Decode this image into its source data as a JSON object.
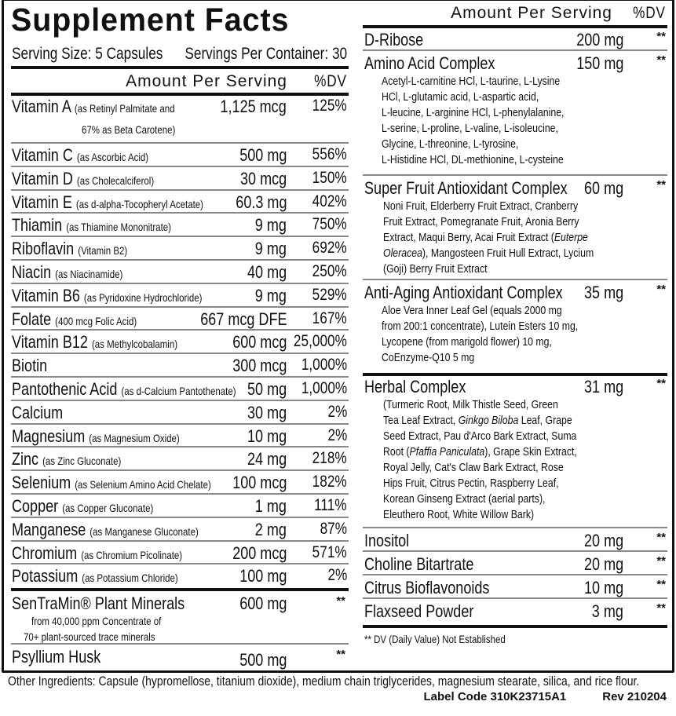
{
  "title": "Supplement Facts",
  "serving_size": "Serving Size: 5 Capsules",
  "servings_per_container": "Servings Per Container: 30",
  "header": {
    "amount": "Amount Per Serving",
    "dv": "%DV"
  },
  "left_rows": [
    {
      "name": "Vitamin A",
      "note": "(as Retinyl Palmitate and",
      "note2": "67% as Beta Carotene)",
      "amount": "1,125 mcg",
      "dv": "125%"
    },
    {
      "name": "Vitamin C",
      "note": "(as Ascorbic Acid)",
      "amount": "500 mg",
      "dv": "556%"
    },
    {
      "name": "Vitamin D",
      "note": "(as Cholecalciferol)",
      "amount": "30 mcg",
      "dv": "150%"
    },
    {
      "name": "Vitamin E",
      "note": "(as d-alpha-Tocopheryl Acetate)",
      "amount": "60.3 mg",
      "dv": "402%"
    },
    {
      "name": "Thiamin",
      "note": "(as Thiamine Mononitrate)",
      "amount": "9 mg",
      "dv": "750%"
    },
    {
      "name": "Riboflavin",
      "note": "(Vitamin B2)",
      "amount": "9 mg",
      "dv": "692%"
    },
    {
      "name": "Niacin",
      "note": "(as Niacinamide)",
      "amount": "40 mg",
      "dv": "250%"
    },
    {
      "name": "Vitamin B6",
      "note": "(as Pyridoxine Hydrochloride)",
      "amount": "9 mg",
      "dv": "529%"
    },
    {
      "name": "Folate",
      "note": "(400 mcg Folic Acid)",
      "amount": "667 mcg DFE",
      "dv": "167%"
    },
    {
      "name": "Vitamin B12",
      "note": "(as Methylcobalamin)",
      "amount": "600 mcg",
      "dv": "25,000%"
    },
    {
      "name": "Biotin",
      "note": "",
      "amount": "300 mcg",
      "dv": "1,000%"
    },
    {
      "name": "Pantothenic Acid",
      "note": "(as d-Calcium Pantothenate)",
      "amount": "50 mg",
      "dv": "1,000%"
    },
    {
      "name": "Calcium",
      "note": "",
      "amount": "30 mg",
      "dv": "2%"
    },
    {
      "name": "Magnesium",
      "note": "(as Magnesium Oxide)",
      "amount": "10 mg",
      "dv": "2%"
    },
    {
      "name": "Zinc",
      "note": "(as Zinc Gluconate)",
      "amount": "24 mg",
      "dv": "218%"
    },
    {
      "name": "Selenium",
      "note": "(as Selenium Amino Acid Chelate)",
      "amount": "100 mcg",
      "dv": "182%"
    },
    {
      "name": "Copper",
      "note": "(as Copper Gluconate)",
      "amount": "1 mg",
      "dv": "111%"
    },
    {
      "name": "Manganese",
      "note": "(as Manganese Gluconate)",
      "amount": "2 mg",
      "dv": "87%"
    },
    {
      "name": "Chromium",
      "note": "(as Chromium Picolinate)",
      "amount": "200 mcg",
      "dv": "571%"
    },
    {
      "name": "Potassium",
      "note": "(as Potassium Chloride)",
      "amount": "100 mg",
      "dv": "2%"
    }
  ],
  "sentramin": {
    "name": "SenTraMin® Plant Minerals",
    "amount": "600 mg",
    "dv": "**",
    "details": [
      "from 40,000 ppm Concentrate of",
      "70+ plant-sourced trace minerals"
    ]
  },
  "psyllium": {
    "name": "Psyllium Husk",
    "amount": "500 mg",
    "dv": "**"
  },
  "right_rows": [
    {
      "name": "D-Ribose",
      "amount": "200 mg",
      "dv": "**",
      "details": []
    },
    {
      "name": "Amino Acid Complex",
      "amount": "150 mg",
      "dv": "**",
      "details": [
        "Acetyl-L-carnitine HCl, L-taurine, L-Lysine",
        "HCl, L-glutamic acid, L-aspartic acid,",
        "L-leucine, L-arginine HCl, L-phenylalanine,",
        "L-serine, L-proline, L-valine, L-isoleucine,",
        "Glycine, L-threonine, L-tyrosine,",
        "L-Histidine HCl, DL-methionine, L-cysteine"
      ]
    },
    {
      "name": "Super Fruit Antioxidant Complex",
      "amount": "60 mg",
      "dv": "**",
      "details": [
        "Noni Fruit, Elderberry Fruit Extract, Cranberry",
        "Fruit Extract, Pomegranate Fruit, Aronia Berry",
        "Extract, Maqui Berry, Acai Fruit Extract (Euterpe",
        "Oleracea), Mangosteen Fruit Hull Extract, Lycium",
        "(Goji) Berry Fruit Extract"
      ]
    },
    {
      "name": "Anti-Aging Antioxidant Complex",
      "amount": "35 mg",
      "dv": "**",
      "details": [
        "Aloe Vera Inner Leaf Gel (equals 2000 mg",
        "from 200:1 concentrate), Lutein Esters 10 mg,",
        "Lycopene (from marigold flower) 10 mg,",
        "CoEnzyme-Q10 5 mg"
      ]
    },
    {
      "name": "Herbal Complex",
      "amount": "31 mg",
      "dv": "**",
      "details": [
        "(Turmeric Root, Milk Thistle Seed, Green",
        "Tea Leaf Extract, Ginkgo Biloba Leaf, Grape",
        "Seed Extract, Pau d'Arco Bark Extract, Suma",
        "Root (Pfaffia Paniculata), Grape Skin Extract,",
        "Royal Jelly, Cat's Claw Bark Extract, Rose",
        "Hips Fruit, Citrus Pectin, Raspberry Leaf,",
        "Korean Ginseng Extract (aerial parts),",
        "Eleuthero Root, White Willow Bark)"
      ]
    },
    {
      "name": "Inositol",
      "amount": "20 mg",
      "dv": "**",
      "details": []
    },
    {
      "name": "Choline Bitartrate",
      "amount": "20 mg",
      "dv": "**",
      "details": []
    },
    {
      "name": "Citrus Bioflavonoids",
      "amount": "10 mg",
      "dv": "**",
      "details": []
    },
    {
      "name": "Flaxseed Powder",
      "amount": "3 mg",
      "dv": "**",
      "details": []
    }
  ],
  "italic_terms": [
    "Euterpe",
    "Oleracea",
    "Ginkgo Biloba",
    "Pfaffia Paniculata"
  ],
  "footnote": "** DV (Daily Value) Not Established",
  "other_ingredients": "Other Ingredients: Capsule (hypromellose, titanium dioxide), medium chain triglycerides, magnesium stearate, silica, and rice flour.",
  "label_code": "Label Code 310K23715A1",
  "revision": "Rev 210204"
}
